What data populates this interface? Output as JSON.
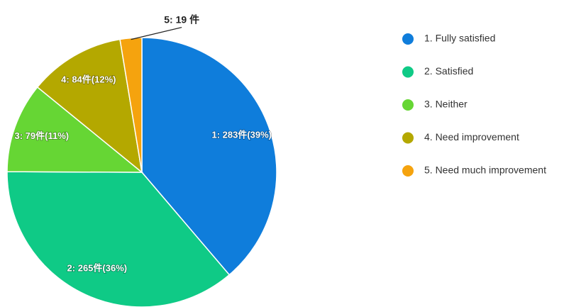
{
  "chart_data": {
    "type": "pie",
    "categories": [
      "1. Fully satisfied",
      "2. Satisfied",
      "3. Neither",
      "4. Need improvement",
      "5. Need much improvement"
    ],
    "values": [
      283,
      265,
      79,
      84,
      19
    ],
    "value_labels": [
      "1: 283件(39%)",
      "2: 265件(36%)",
      "3: 79件(11%)",
      "4: 84件(12%)",
      "5: 19 件"
    ],
    "colors": [
      "#0f7ddb",
      "#0fca86",
      "#66d634",
      "#b4a800",
      "#f5a30e"
    ]
  }
}
